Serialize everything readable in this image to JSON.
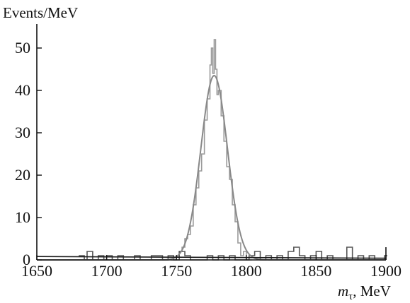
{
  "chart_data": {
    "type": "line",
    "title": "",
    "xlabel_var": "m",
    "xlabel_sub": "τ",
    "xlabel_unit": ", MeV",
    "ylabel": "Events/MeV",
    "xlim": [
      1650,
      1900
    ],
    "ylim": [
      0,
      55
    ],
    "xticks": [
      1650,
      1700,
      1750,
      1800,
      1850,
      1900
    ],
    "yticks": [
      0,
      10,
      20,
      30,
      40,
      50
    ],
    "grid": false,
    "legend": "none",
    "colors": {
      "axis": "#111111",
      "signal": "#9a9a9a",
      "background": "#555555",
      "fit": "#888888",
      "baseline": "#1a1a1a"
    },
    "series": [
      {
        "kind": "histogram-signal",
        "x": [
          1746,
          1748,
          1750,
          1752,
          1754,
          1756,
          1758,
          1760,
          1762,
          1764,
          1766,
          1768,
          1770,
          1772,
          1774,
          1775,
          1776,
          1777,
          1778,
          1779,
          1780,
          1782,
          1784,
          1786,
          1788,
          1790,
          1792,
          1794,
          1796,
          1798,
          1800,
          1802
        ],
        "y": [
          0,
          0,
          1,
          2,
          3,
          5,
          6,
          8,
          13,
          17,
          21,
          25,
          33,
          38,
          46,
          50,
          44,
          52,
          45,
          39,
          40,
          34,
          28,
          22,
          19,
          13,
          9,
          4,
          1,
          2,
          0,
          0
        ]
      },
      {
        "kind": "histogram-background",
        "x": [
          1680,
          1684,
          1686,
          1690,
          1694,
          1698,
          1700,
          1704,
          1708,
          1712,
          1716,
          1720,
          1724,
          1728,
          1732,
          1736,
          1740,
          1744,
          1748,
          1752,
          1756,
          1760,
          1764,
          1768,
          1772,
          1776,
          1780,
          1784,
          1788,
          1792,
          1796,
          1800,
          1802,
          1806,
          1810,
          1814,
          1818,
          1822,
          1826,
          1830,
          1834,
          1838,
          1842,
          1846,
          1850,
          1854,
          1858,
          1862,
          1866,
          1870,
          1872,
          1876,
          1880,
          1884,
          1888,
          1892,
          1896,
          1899
        ],
        "y": [
          1,
          0,
          2,
          0,
          1,
          0,
          1,
          0,
          1,
          0,
          0,
          1,
          0,
          0,
          1,
          1,
          0,
          1,
          0,
          2,
          1,
          0,
          0,
          0,
          1,
          0,
          1,
          0,
          1,
          0,
          0,
          0,
          1,
          2,
          0,
          1,
          0,
          1,
          0,
          2,
          3,
          1,
          0,
          1,
          2,
          0,
          1,
          0,
          0,
          0,
          3,
          0,
          1,
          0,
          1,
          0,
          0,
          1
        ]
      },
      {
        "kind": "fit",
        "gauss": {
          "amplitude": 43.5,
          "mean": 1777,
          "sigma": 9.5
        }
      },
      {
        "kind": "baseline",
        "y_start": 0.8,
        "y_end": 0.4
      }
    ]
  }
}
